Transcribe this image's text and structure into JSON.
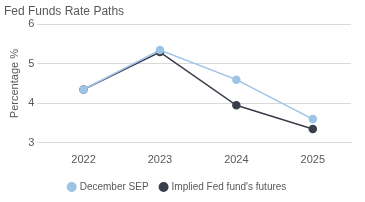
{
  "chart_data": {
    "type": "line",
    "title": "Fed Funds Rate Paths",
    "ylabel": "Percentage %",
    "categories": [
      "2022",
      "2023",
      "2024",
      "2025"
    ],
    "series": [
      {
        "name": "December SEP",
        "color": "#9dc3e6",
        "marker": "circle",
        "values": [
          4.35,
          5.35,
          4.6,
          3.6
        ]
      },
      {
        "name": "Implied Fed fund's futures",
        "color": "#3b3f4c",
        "marker": "circle",
        "values": [
          4.35,
          5.3,
          3.95,
          3.35
        ]
      }
    ],
    "ylim": [
      3,
      6
    ],
    "yticks": [
      3,
      4,
      5,
      6
    ],
    "grid": true,
    "legend": "bottom"
  }
}
